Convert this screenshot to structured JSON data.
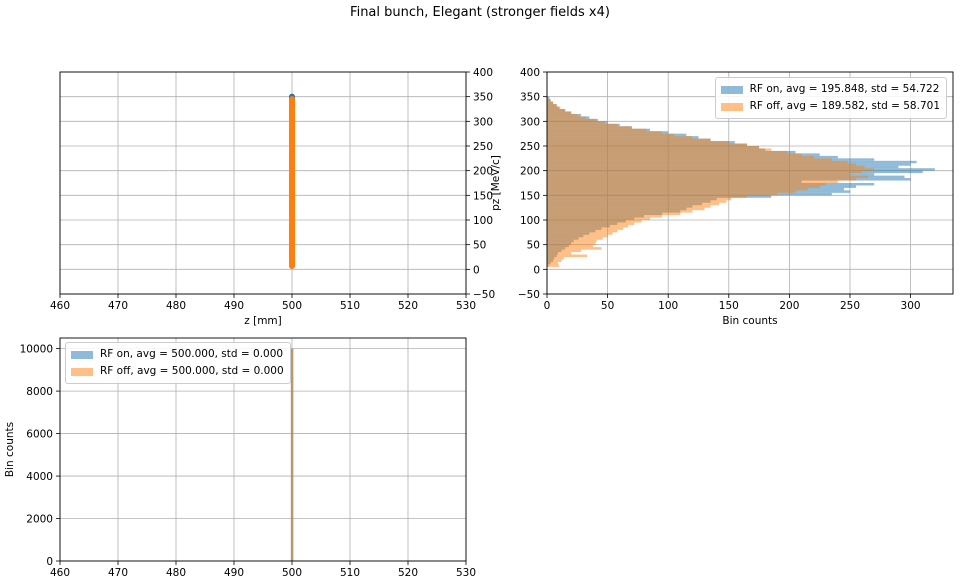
{
  "figure": {
    "title": "Final bunch, Elegant (stronger fields x4)"
  },
  "colors": {
    "rf_on": "#1f77b4",
    "rf_off": "#ff7f0e",
    "grid": "#b0b0b0"
  },
  "chart_data": [
    {
      "id": "scatter",
      "type": "scatter",
      "title": "",
      "xlabel": "z [mm]",
      "ylabel": "pz [MeV/c]",
      "xlim": [
        460,
        530
      ],
      "ylim": [
        -50,
        400
      ],
      "xticks": [
        460,
        470,
        480,
        490,
        500,
        510,
        520,
        530
      ],
      "yticks": [
        -50,
        0,
        50,
        100,
        150,
        200,
        250,
        300,
        350,
        400
      ],
      "yaxis_side": "right",
      "grid": true,
      "series": [
        {
          "z_mm": 500,
          "pz_range": [
            7,
            350
          ]
        },
        {
          "z_mm": 500,
          "pz_range": [
            7,
            345
          ]
        }
      ]
    },
    {
      "id": "pz-hist",
      "type": "bar",
      "orientation": "horizontal",
      "title": "",
      "xlabel": "Bin counts",
      "ylabel": "",
      "xlim": [
        0,
        335
      ],
      "ylim": [
        -50,
        400
      ],
      "xticks": [
        0,
        50,
        100,
        150,
        200,
        250,
        300
      ],
      "yticks": [
        -50,
        0,
        50,
        100,
        150,
        200,
        250,
        300,
        350,
        400
      ],
      "grid": true,
      "legend_position": "top-right",
      "series": [
        {
          "name": "RF on, avg = 195.848, std = 54.722",
          "bins": [
            [
              5,
              10,
              1
            ],
            [
              10,
              15,
              3
            ],
            [
              15,
              20,
              5
            ],
            [
              20,
              25,
              6
            ],
            [
              25,
              30,
              8
            ],
            [
              30,
              35,
              9
            ],
            [
              35,
              40,
              12
            ],
            [
              40,
              45,
              15
            ],
            [
              45,
              50,
              18
            ],
            [
              50,
              55,
              20
            ],
            [
              55,
              60,
              22
            ],
            [
              60,
              65,
              26
            ],
            [
              65,
              70,
              30
            ],
            [
              70,
              75,
              35
            ],
            [
              75,
              80,
              40
            ],
            [
              80,
              85,
              45
            ],
            [
              85,
              90,
              52
            ],
            [
              90,
              95,
              58
            ],
            [
              95,
              100,
              65
            ],
            [
              100,
              105,
              72
            ],
            [
              105,
              110,
              80
            ],
            [
              110,
              115,
              95
            ],
            [
              115,
              120,
              110
            ],
            [
              120,
              125,
              115
            ],
            [
              125,
              130,
              120
            ],
            [
              130,
              135,
              128
            ],
            [
              135,
              140,
              135
            ],
            [
              140,
              145,
              140
            ],
            [
              145,
              150,
              185
            ],
            [
              150,
              155,
              235
            ],
            [
              155,
              160,
              250
            ],
            [
              160,
              165,
              245
            ],
            [
              165,
              170,
              255
            ],
            [
              170,
              175,
              270
            ],
            [
              175,
              180,
              210
            ],
            [
              180,
              185,
              300
            ],
            [
              185,
              190,
              295
            ],
            [
              190,
              195,
              270
            ],
            [
              195,
              200,
              310
            ],
            [
              200,
              205,
              320
            ],
            [
              205,
              210,
              290
            ],
            [
              210,
              215,
              300
            ],
            [
              215,
              220,
              305
            ],
            [
              220,
              225,
              270
            ],
            [
              225,
              230,
              240
            ],
            [
              230,
              235,
              225
            ],
            [
              235,
              240,
              205
            ],
            [
              240,
              245,
              180
            ],
            [
              245,
              250,
              175
            ],
            [
              250,
              255,
              165
            ],
            [
              255,
              260,
              155
            ],
            [
              260,
              265,
              135
            ],
            [
              265,
              270,
              125
            ],
            [
              270,
              275,
              115
            ],
            [
              275,
              280,
              100
            ],
            [
              280,
              285,
              85
            ],
            [
              285,
              290,
              70
            ],
            [
              290,
              295,
              60
            ],
            [
              295,
              300,
              50
            ],
            [
              300,
              305,
              42
            ],
            [
              305,
              310,
              35
            ],
            [
              310,
              315,
              28
            ],
            [
              315,
              320,
              20
            ],
            [
              320,
              325,
              15
            ],
            [
              325,
              330,
              10
            ],
            [
              330,
              335,
              8
            ],
            [
              335,
              340,
              5
            ],
            [
              340,
              345,
              3
            ],
            [
              345,
              350,
              2
            ]
          ]
        },
        {
          "name": "RF off, avg = 189.582, std = 58.701",
          "bins": [
            [
              5,
              10,
              10
            ],
            [
              10,
              15,
              9
            ],
            [
              15,
              20,
              12
            ],
            [
              20,
              25,
              14
            ],
            [
              25,
              30,
              33
            ],
            [
              30,
              35,
              20
            ],
            [
              35,
              40,
              28
            ],
            [
              40,
              45,
              45
            ],
            [
              45,
              50,
              38
            ],
            [
              50,
              55,
              40
            ],
            [
              55,
              60,
              41
            ],
            [
              60,
              65,
              46
            ],
            [
              65,
              70,
              50
            ],
            [
              70,
              75,
              54
            ],
            [
              75,
              80,
              58
            ],
            [
              80,
              85,
              63
            ],
            [
              85,
              90,
              67
            ],
            [
              90,
              95,
              72
            ],
            [
              95,
              100,
              78
            ],
            [
              100,
              105,
              85
            ],
            [
              105,
              110,
              95
            ],
            [
              110,
              115,
              110
            ],
            [
              115,
              120,
              120
            ],
            [
              120,
              125,
              130
            ],
            [
              125,
              130,
              135
            ],
            [
              130,
              135,
              142
            ],
            [
              135,
              140,
              148
            ],
            [
              140,
              145,
              152
            ],
            [
              145,
              150,
              165
            ],
            [
              150,
              155,
              190
            ],
            [
              155,
              160,
              205
            ],
            [
              160,
              165,
              215
            ],
            [
              165,
              170,
              225
            ],
            [
              170,
              175,
              230
            ],
            [
              175,
              180,
              240
            ],
            [
              180,
              185,
              255
            ],
            [
              185,
              190,
              265
            ],
            [
              190,
              195,
              250
            ],
            [
              195,
              200,
              260
            ],
            [
              200,
              205,
              270
            ],
            [
              205,
              210,
              262
            ],
            [
              210,
              215,
              255
            ],
            [
              215,
              220,
              248
            ],
            [
              220,
              225,
              235
            ],
            [
              225,
              230,
              220
            ],
            [
              230,
              235,
              210
            ],
            [
              235,
              240,
              198
            ],
            [
              240,
              245,
              185
            ],
            [
              245,
              250,
              175
            ],
            [
              250,
              255,
              165
            ],
            [
              255,
              260,
              150
            ],
            [
              260,
              265,
              135
            ],
            [
              265,
              270,
              120
            ],
            [
              270,
              275,
              105
            ],
            [
              275,
              280,
              95
            ],
            [
              280,
              285,
              82
            ],
            [
              285,
              290,
              70
            ],
            [
              290,
              295,
              58
            ],
            [
              295,
              300,
              48
            ],
            [
              300,
              305,
              40
            ],
            [
              305,
              310,
              32
            ],
            [
              310,
              315,
              25
            ],
            [
              315,
              320,
              20
            ],
            [
              320,
              325,
              15
            ],
            [
              325,
              330,
              11
            ],
            [
              330,
              335,
              8
            ],
            [
              335,
              340,
              5
            ],
            [
              340,
              345,
              3
            ],
            [
              345,
              350,
              1
            ]
          ]
        }
      ]
    },
    {
      "id": "z-hist",
      "type": "bar",
      "orientation": "vertical",
      "title": "",
      "xlabel": "",
      "ylabel": "Bin counts",
      "xlim": [
        460,
        530
      ],
      "ylim": [
        0,
        10500
      ],
      "xticks": [
        460,
        470,
        480,
        490,
        500,
        510,
        520,
        530
      ],
      "yticks": [
        0,
        2000,
        4000,
        6000,
        8000,
        10000
      ],
      "grid": true,
      "legend_position": "upper-left",
      "series": [
        {
          "name": "RF on, avg = 500.000, std = 0.000",
          "bins": [
            [
              499.8,
              500.2,
              10000
            ]
          ]
        },
        {
          "name": "RF off, avg = 500.000, std = 0.000",
          "bins": [
            [
              499.8,
              500.2,
              10000
            ]
          ]
        }
      ]
    }
  ]
}
